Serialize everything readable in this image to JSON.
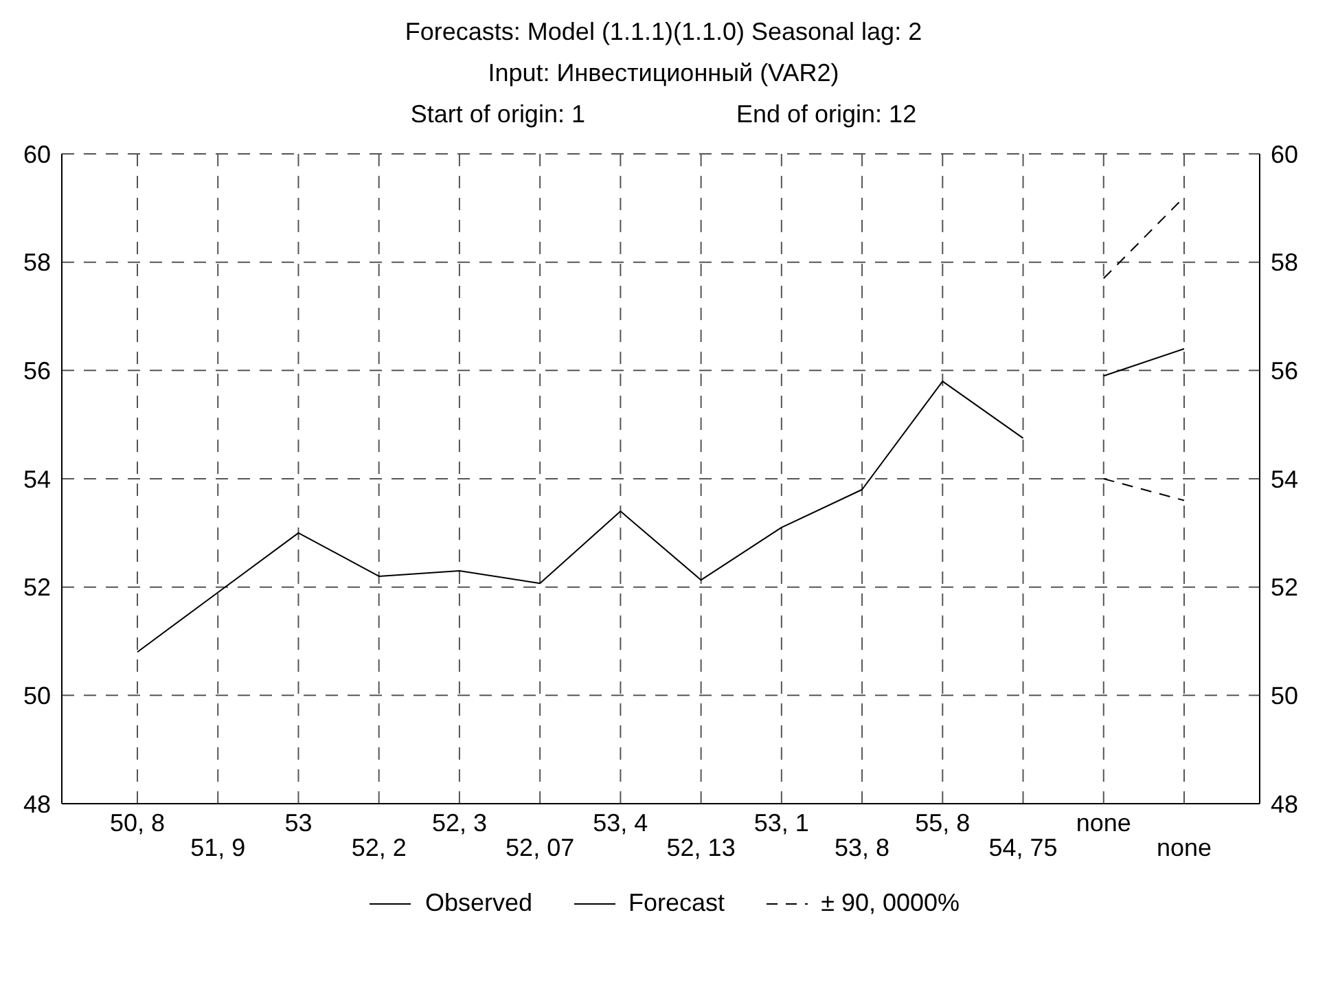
{
  "chart_data": {
    "type": "line",
    "title": "Forecasts: Model (1.1.1)(1.1.0) Seasonal lag: 2",
    "subtitle": "Input: Инвестиционный (VAR2)",
    "annotations": [
      "Start of origin: 1",
      "End of origin: 12"
    ],
    "categories": [
      "50, 8",
      "51, 9",
      "53",
      "52, 2",
      "52, 3",
      "52, 07",
      "53, 4",
      "52, 13",
      "53, 1",
      "53, 8",
      "55, 8",
      "54, 75",
      "none",
      "none"
    ],
    "series": [
      {
        "name": "Observed",
        "color": "#000000",
        "line_style": "solid",
        "values": [
          50.8,
          51.9,
          53,
          52.2,
          52.3,
          52.07,
          53.4,
          52.13,
          53.1,
          53.8,
          55.8,
          54.75,
          null,
          null
        ]
      },
      {
        "name": "Forecast",
        "color": "#000000",
        "line_style": "solid",
        "values": [
          null,
          null,
          null,
          null,
          null,
          null,
          null,
          null,
          null,
          null,
          null,
          null,
          55.9,
          56.4
        ]
      },
      {
        "name": "± 90, 0000%",
        "color": "#000000",
        "line_style": "dashed",
        "values": [
          null,
          null,
          null,
          null,
          null,
          null,
          null,
          null,
          null,
          null,
          null,
          null,
          57.7,
          59.2
        ]
      },
      {
        "color": "#000000",
        "line_style": "dashed",
        "values": [
          null,
          null,
          null,
          null,
          null,
          null,
          null,
          null,
          null,
          null,
          null,
          null,
          54.0,
          53.6
        ]
      }
    ],
    "ylim": [
      48,
      60
    ],
    "yticks": [
      48,
      50,
      52,
      54,
      56,
      58,
      60
    ],
    "y2lim": [
      48,
      60
    ],
    "y2ticks": [
      48,
      50,
      52,
      54,
      56,
      58,
      60
    ],
    "grid": true,
    "legend": "bottom",
    "marker": "none"
  }
}
